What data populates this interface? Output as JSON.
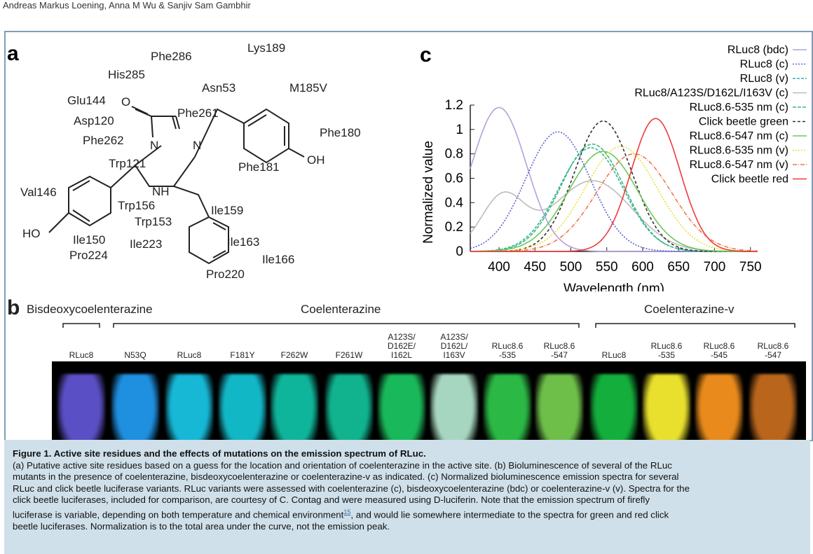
{
  "header": {
    "authors": "Andreas Markus Loening, Anna M Wu & Sanjiv Sam Gambhir"
  },
  "panel_a": {
    "label": "a",
    "residues": [
      "Lys189",
      "Phe286",
      "His285",
      "Asn53",
      "M185V",
      "Glu144",
      "Phe261",
      "Asp120",
      "Phe180",
      "Phe262",
      "Trp121",
      "Phe181",
      "Val146",
      "Trp156",
      "Ile159",
      "Trp153",
      "HO",
      "Ile150",
      "Pro224",
      "Ile223",
      "Ile163",
      "Ile166",
      "Pro220"
    ],
    "atoms": [
      "O",
      "N",
      "N",
      "NH",
      "OH"
    ]
  },
  "panel_b": {
    "label": "b",
    "groups": [
      "Bisdeoxycoelenterazine",
      "Coelenterazine",
      "Coelenterazine-v"
    ],
    "tubes": [
      {
        "label": [
          "RLuc8"
        ],
        "color": "#5a4fc4"
      },
      {
        "label": [
          "N53Q"
        ],
        "color": "#1f8fe0"
      },
      {
        "label": [
          "RLuc8"
        ],
        "color": "#17b7d6"
      },
      {
        "label": [
          "F181Y"
        ],
        "color": "#12b7c6"
      },
      {
        "label": [
          "F262W"
        ],
        "color": "#0fb59a"
      },
      {
        "label": [
          "F261W"
        ],
        "color": "#10b38e"
      },
      {
        "label": [
          "A123S/",
          "D162E/",
          "I162L"
        ],
        "color": "#19b85a"
      },
      {
        "label": [
          "A123S/",
          "D162L/",
          "I163V"
        ],
        "color": "#a7d6c0"
      },
      {
        "label": [
          "RLuc8.6",
          "-535"
        ],
        "color": "#2bb845"
      },
      {
        "label": [
          "RLuc8.6",
          "-547"
        ],
        "color": "#6ebf4a"
      },
      {
        "label": [
          "RLuc8"
        ],
        "color": "#14ae3c"
      },
      {
        "label": [
          "RLuc8.6",
          "-535"
        ],
        "color": "#e8e02c"
      },
      {
        "label": [
          "RLuc8.6",
          "-545"
        ],
        "color": "#e88a1c"
      },
      {
        "label": [
          "RLuc8.6",
          "-547"
        ],
        "color": "#b9661c"
      }
    ]
  },
  "panel_c": {
    "label": "c"
  },
  "chart_data": {
    "type": "line",
    "title": "",
    "xlabel": "Wavelength (nm)",
    "ylabel": "Normalized value",
    "xlim": [
      360,
      760
    ],
    "ylim": [
      0,
      1.2
    ],
    "xticks": [
      400,
      450,
      500,
      550,
      600,
      650,
      700,
      750
    ],
    "yticks": [
      0,
      0.2,
      0.4,
      0.6,
      0.8,
      1,
      1.2
    ],
    "legend_position": "top-right",
    "series": [
      {
        "name": "RLuc8 (bdc)",
        "color": "#b6a0d8",
        "dash": "solid",
        "peaks": [
          {
            "x": 400,
            "y": 1.18,
            "w": 38
          }
        ]
      },
      {
        "name": "RLuc8 (c)",
        "color": "#5a60d0",
        "dash": "2,2",
        "peaks": [
          {
            "x": 482,
            "y": 0.98,
            "w": 45
          }
        ]
      },
      {
        "name": "RLuc8 (v)",
        "color": "#2fb5a0",
        "dash": "4,2",
        "peaks": [
          {
            "x": 528,
            "y": 0.85,
            "w": 45
          }
        ]
      },
      {
        "name": "RLuc8/A123S/D162L/I163V (c)",
        "color": "#bcbcbc",
        "dash": "solid",
        "peaks": [
          {
            "x": 405,
            "y": 0.44,
            "w": 30
          },
          {
            "x": 530,
            "y": 0.58,
            "w": 55
          }
        ]
      },
      {
        "name": "RLuc8.6-535 nm (c)",
        "color": "#40b878",
        "dash": "5,2",
        "peaks": [
          {
            "x": 530,
            "y": 0.88,
            "w": 44
          }
        ]
      },
      {
        "name": "Click beetle green",
        "color": "#303030",
        "dash": "4,3",
        "peaks": [
          {
            "x": 545,
            "y": 1.07,
            "w": 40
          }
        ]
      },
      {
        "name": "RLuc8.6-547 nm (c)",
        "color": "#6cc85a",
        "dash": "solid",
        "peaks": [
          {
            "x": 545,
            "y": 0.82,
            "w": 48
          }
        ]
      },
      {
        "name": "RLuc8.6-535 nm (v)",
        "color": "#e7df3a",
        "dash": "2,2",
        "peaks": [
          {
            "x": 570,
            "y": 0.86,
            "w": 50
          }
        ]
      },
      {
        "name": "RLuc8.6-547 nm (v)",
        "color": "#f0794c",
        "dash": "6,2,1,2",
        "peaks": [
          {
            "x": 588,
            "y": 0.8,
            "w": 52
          }
        ]
      },
      {
        "name": "Click beetle red",
        "color": "#ee3b3b",
        "dash": "solid",
        "peaks": [
          {
            "x": 618,
            "y": 1.09,
            "w": 34
          }
        ]
      }
    ]
  },
  "caption": {
    "title": "Figure 1. Active site residues and the effects of mutations on the emission spectrum of RLuc.",
    "line1": "(a) Putative active site residues based on a guess for the location and orientation of coelenterazine in the active site. (b) Bioluminescence of several of the RLuc",
    "line2": "mutants in the presence of coelenterazine, bisdeoxycoelenterazine or coelenterazine-v as indicated. (c) Normalized bioluminescence emission spectra for several",
    "line3": "RLuc and click beetle luciferase variants. RLuc variants were assessed with coelenterazine (c), bisdeoxycoelenterazine (bdc) or coelenterazine-v (v). Spectra for the",
    "line4": "click beetle luciferases, included for comparison, are courtesy of C. Contag and were measured using D-luciferin. Note that the emission spectrum of firefly",
    "line5a": "luciferase is variable, depending on both temperature and chemical environment",
    "ref": "15",
    "line5b": ", and would lie somewhere intermediate to the spectra for green and red click",
    "line6": "beetle luciferases. Normalization is to the total area under the curve, not the emission peak."
  }
}
